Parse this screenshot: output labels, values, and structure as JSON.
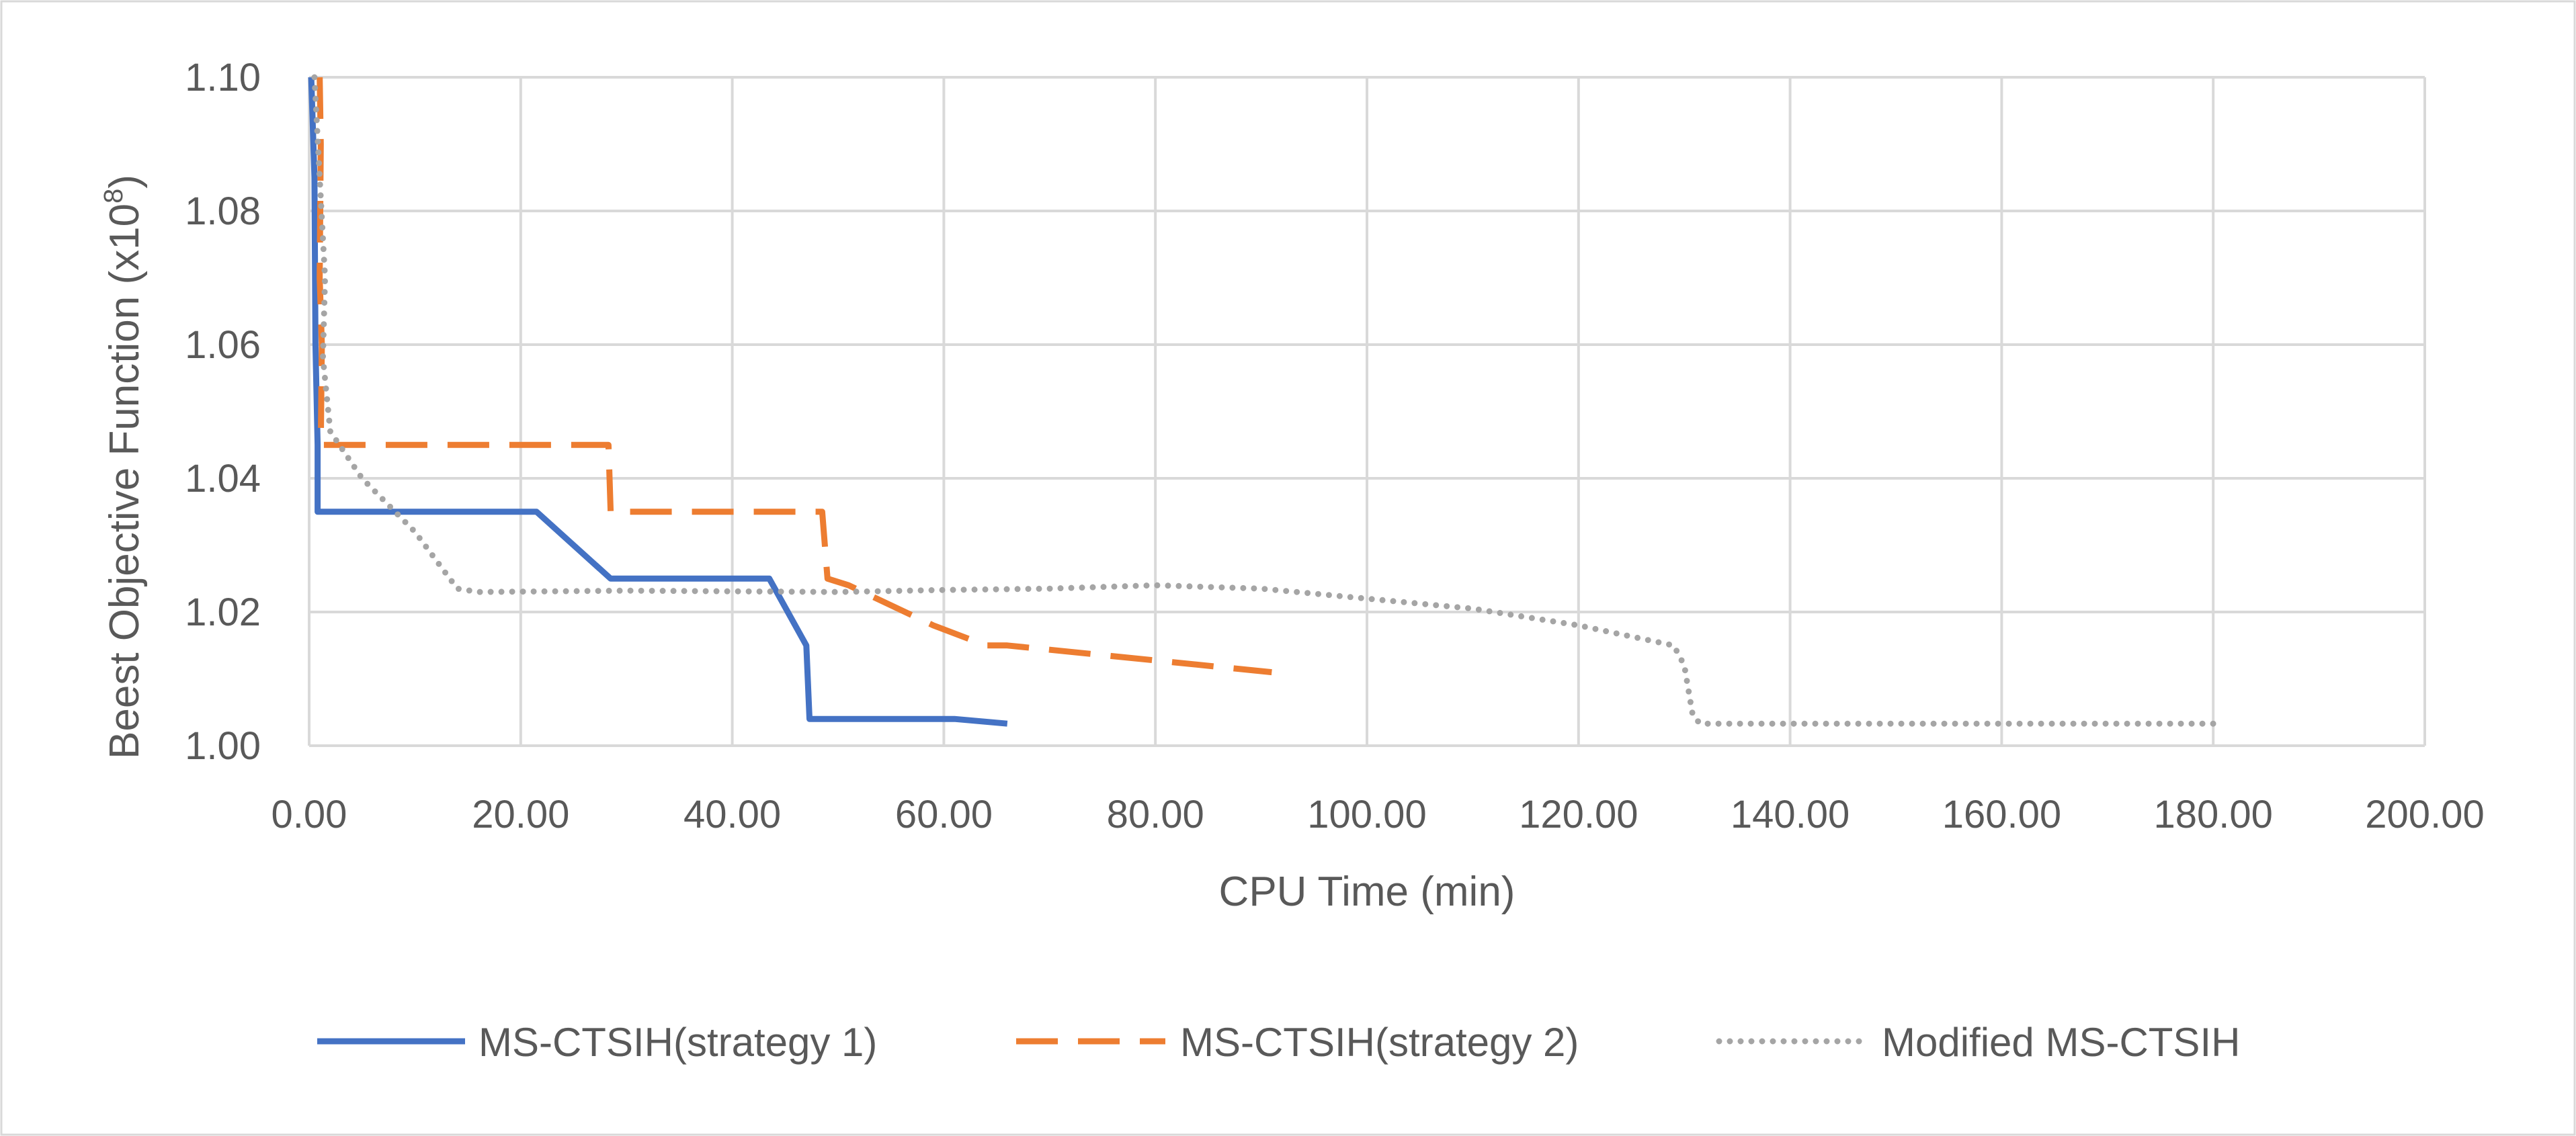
{
  "chart_data": {
    "type": "line",
    "title": "",
    "xlabel": "CPU Time (min)",
    "ylabel_main": "Beest Objective Function (x10",
    "ylabel_exp": "8",
    "ylabel_close": ")",
    "xlim": [
      0,
      200
    ],
    "ylim": [
      1.0,
      1.1
    ],
    "xticks": [
      0,
      20,
      40,
      60,
      80,
      100,
      120,
      140,
      160,
      180,
      200
    ],
    "xtick_labels": [
      "0.00",
      "20.00",
      "40.00",
      "60.00",
      "80.00",
      "100.00",
      "120.00",
      "140.00",
      "160.00",
      "180.00",
      "200.00"
    ],
    "yticks": [
      1.0,
      1.02,
      1.04,
      1.06,
      1.08,
      1.1
    ],
    "ytick_labels": [
      "1.00",
      "1.02",
      "1.04",
      "1.06",
      "1.08",
      "1.10"
    ],
    "grid": true,
    "legend_position": "bottom",
    "series": [
      {
        "name": "MS-CTSIH(strategy 1)",
        "color": "#4472C4",
        "style": "solid",
        "points": [
          [
            0.2,
            1.1
          ],
          [
            0.5,
            1.085
          ],
          [
            0.6,
            1.06
          ],
          [
            0.8,
            1.045
          ],
          [
            0.8,
            1.035
          ],
          [
            21.5,
            1.035
          ],
          [
            28.5,
            1.025
          ],
          [
            43.5,
            1.025
          ],
          [
            47.0,
            1.015
          ],
          [
            47.3,
            1.004
          ],
          [
            61.0,
            1.004
          ],
          [
            66.0,
            1.0033
          ]
        ]
      },
      {
        "name": "MS-CTSIH(strategy 2)",
        "color": "#ED7D31",
        "style": "dashed",
        "points": [
          [
            1.0,
            1.1
          ],
          [
            1.1,
            1.09
          ],
          [
            1.0,
            1.07
          ],
          [
            1.2,
            1.06
          ],
          [
            1.1,
            1.045
          ],
          [
            28.3,
            1.045
          ],
          [
            28.5,
            1.035
          ],
          [
            48.5,
            1.035
          ],
          [
            49.0,
            1.025
          ],
          [
            51.0,
            1.024
          ],
          [
            59.0,
            1.018
          ],
          [
            64.0,
            1.015
          ],
          [
            66.0,
            1.015
          ],
          [
            91.0,
            1.011
          ]
        ]
      },
      {
        "name": "Modified MS-CTSIH",
        "color": "#A5A5A5",
        "style": "dotted",
        "points": [
          [
            0.5,
            1.1
          ],
          [
            1.0,
            1.085
          ],
          [
            1.5,
            1.07
          ],
          [
            1.3,
            1.058
          ],
          [
            2.0,
            1.047
          ],
          [
            5.0,
            1.04
          ],
          [
            10.0,
            1.032
          ],
          [
            14.0,
            1.0235
          ],
          [
            16.0,
            1.023
          ],
          [
            30.0,
            1.0232
          ],
          [
            50.0,
            1.023
          ],
          [
            60.0,
            1.0233
          ],
          [
            70.0,
            1.0235
          ],
          [
            80.0,
            1.024
          ],
          [
            90.0,
            1.0235
          ],
          [
            100.0,
            1.022
          ],
          [
            110.0,
            1.0205
          ],
          [
            120.0,
            1.018
          ],
          [
            129.0,
            1.015
          ],
          [
            130.0,
            1.012
          ],
          [
            130.8,
            1.0045
          ],
          [
            131.5,
            1.0033
          ],
          [
            140.0,
            1.0033
          ],
          [
            160.0,
            1.0033
          ],
          [
            180.0,
            1.0033
          ]
        ]
      }
    ]
  }
}
